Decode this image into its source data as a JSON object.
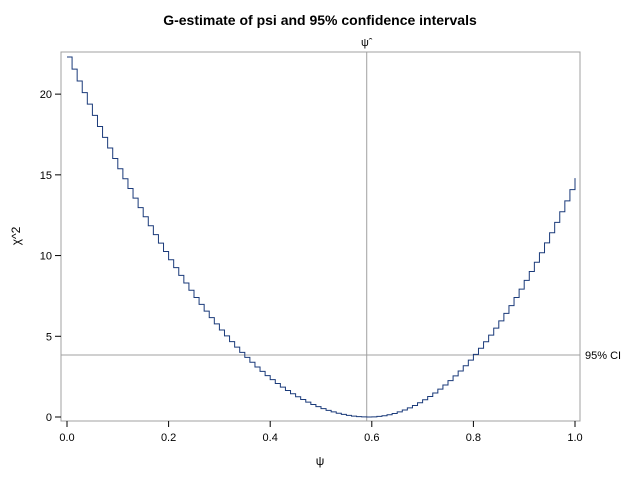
{
  "chart_data": {
    "type": "line",
    "step": true,
    "title": "G-estimate of psi and 95% confidence intervals",
    "xlabel": "ψ",
    "ylabel": "χ^2",
    "xlim": [
      0,
      1
    ],
    "ylim": [
      0,
      22.3
    ],
    "x_ticks": [
      0.0,
      0.2,
      0.4,
      0.6,
      0.8,
      1.0
    ],
    "x_tick_labels": [
      "0.0",
      "0.2",
      "0.4",
      "0.6",
      "0.8",
      "1.0"
    ],
    "y_ticks": [
      0,
      5,
      10,
      15,
      20
    ],
    "y_tick_labels": [
      "0",
      "5",
      "10",
      "15",
      "20"
    ],
    "grid": false,
    "series_color": "#1a3a7a",
    "reference_color": "#a0a0a0",
    "curve": {
      "min_x": 0.59,
      "min_y": 0.0,
      "left_y": 22.3,
      "right_y": 14.8,
      "step_x": 0.01
    },
    "reference_lines": [
      {
        "orientation": "vertical",
        "value": 0.59,
        "label": "ψˆ"
      },
      {
        "orientation": "horizontal",
        "value": 3.84,
        "label": "95% CI"
      }
    ]
  }
}
